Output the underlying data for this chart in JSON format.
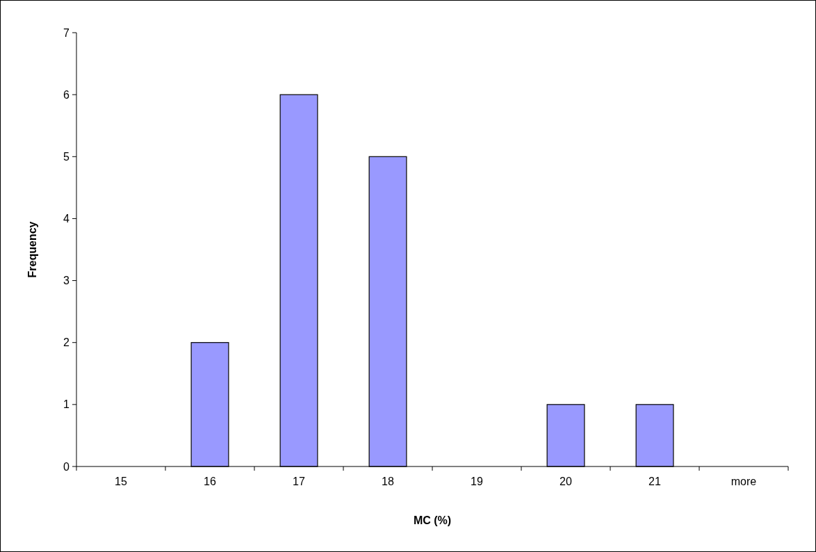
{
  "chart_data": {
    "type": "bar",
    "xlabel": "MC (%)",
    "ylabel": "Frequency",
    "categories": [
      "15",
      "16",
      "17",
      "18",
      "19",
      "20",
      "21",
      "more"
    ],
    "values": [
      0,
      2,
      6,
      5,
      0,
      1,
      1,
      0
    ],
    "color": "#9999ff",
    "ylim": [
      0,
      7
    ],
    "yticks": [
      0,
      1,
      2,
      3,
      4,
      5,
      6,
      7
    ],
    "grid": false
  }
}
